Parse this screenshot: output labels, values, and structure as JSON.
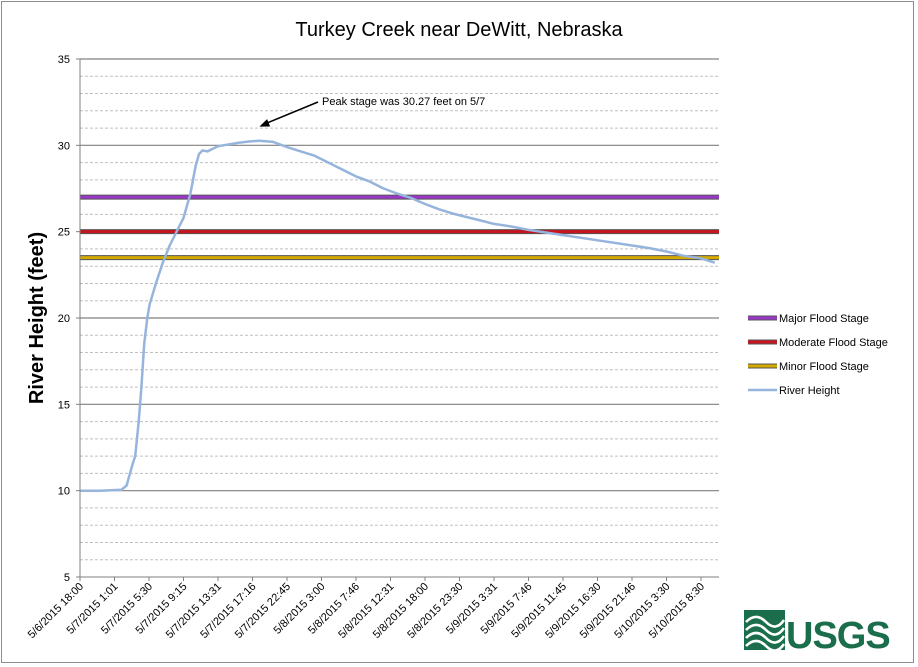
{
  "colors": {
    "major": "#9b37c7",
    "moderate": "#c8141e",
    "minor": "#d4a900",
    "river": "#96b4dc",
    "grid_major": "#808080",
    "grid_minor": "#c0c0c0",
    "usgs_green": "#1b6e4b"
  },
  "logo": {
    "text": "USGS"
  },
  "chart_data": {
    "type": "line",
    "title": "Turkey Creek near DeWitt, Nebraska",
    "ylabel": "River Height (feet)",
    "xlabel": "",
    "ylim": [
      5,
      35
    ],
    "yticks": [
      5,
      10,
      15,
      20,
      25,
      30,
      35
    ],
    "minor_grid_step": 1,
    "grid": true,
    "legend_position": "right",
    "x_tick_labels": [
      "5/6/2015 18:00",
      "5/7/2015 1:01",
      "5/7/2015 5:30",
      "5/7/2015 9:15",
      "5/7/2015 13:31",
      "5/7/2015 17:16",
      "5/7/2015 22:45",
      "5/8/2015 3:00",
      "5/8/2015 7:46",
      "5/8/2015 12:31",
      "5/8/2015 18:00",
      "5/8/2015 23:30",
      "5/9/2015 3:31",
      "5/9/2015 7:46",
      "5/9/2015 11:45",
      "5/9/2015 16:30",
      "5/9/2015 21:46",
      "5/10/2015 3:30",
      "5/10/2015 8:30"
    ],
    "series": [
      {
        "name": "Major Flood Stage",
        "kind": "constant",
        "value": 27,
        "color_key": "major"
      },
      {
        "name": "Moderate Flood Stage",
        "kind": "constant",
        "value": 25,
        "color_key": "moderate"
      },
      {
        "name": "Minor Flood Stage",
        "kind": "constant",
        "value": 23.5,
        "color_key": "minor"
      },
      {
        "name": "River Height",
        "kind": "line",
        "color_key": "river",
        "x_position": [
          0,
          0.6,
          1.2,
          1.35,
          1.45,
          1.52,
          1.6,
          1.7,
          1.78,
          1.86,
          1.95,
          2.02,
          2.2,
          2.4,
          2.6,
          2.8,
          3.0,
          3.2,
          3.35,
          3.45,
          3.55,
          3.7,
          3.85,
          4.0,
          4.3,
          4.6,
          4.9,
          5.2,
          5.6,
          6.0,
          6.4,
          6.8,
          7.2,
          7.6,
          8.0,
          8.4,
          8.8,
          9.2,
          9.6,
          10.0,
          10.4,
          10.8,
          11.2,
          11.6,
          12.0,
          12.5,
          13.0,
          13.5,
          14.0,
          14.5,
          15.0,
          15.5,
          16.0,
          16.5,
          17.0,
          17.5,
          18.0,
          18.4
        ],
        "values": [
          10.0,
          10.0,
          10.05,
          10.3,
          11.0,
          11.5,
          12.0,
          14.0,
          16.0,
          18.5,
          20.0,
          20.8,
          22.0,
          23.2,
          24.2,
          25.0,
          25.8,
          27.2,
          28.8,
          29.5,
          29.7,
          29.65,
          29.8,
          29.95,
          30.05,
          30.15,
          30.22,
          30.27,
          30.2,
          29.9,
          29.65,
          29.4,
          29.0,
          28.6,
          28.2,
          27.9,
          27.5,
          27.2,
          26.95,
          26.6,
          26.3,
          26.05,
          25.85,
          25.65,
          25.45,
          25.3,
          25.1,
          24.95,
          24.8,
          24.65,
          24.5,
          24.35,
          24.2,
          24.05,
          23.85,
          23.6,
          23.45,
          23.2
        ]
      }
    ],
    "annotations": [
      {
        "text": "Peak stage was 30.27 feet on 5/7",
        "target_x_position": 5.2,
        "target_value": 30.27
      }
    ]
  }
}
